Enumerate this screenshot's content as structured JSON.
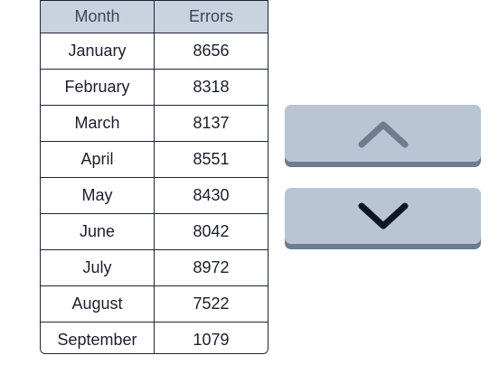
{
  "table": {
    "headers": [
      "Month",
      "Errors"
    ],
    "rows": [
      [
        "January",
        "8656"
      ],
      [
        "February",
        "8318"
      ],
      [
        "March",
        "8137"
      ],
      [
        "April",
        "8551"
      ],
      [
        "May",
        "8430"
      ],
      [
        "June",
        "8042"
      ],
      [
        "July",
        "8972"
      ],
      [
        "August",
        "7522"
      ],
      [
        "September",
        "1079"
      ]
    ]
  },
  "controls": {
    "scroll_up_icon": "chevron-up-icon",
    "scroll_down_icon": "chevron-down-icon",
    "up_icon_color": "#6e7c8f",
    "down_icon_color": "#0e1626",
    "button_color": "#b9c5d4"
  }
}
